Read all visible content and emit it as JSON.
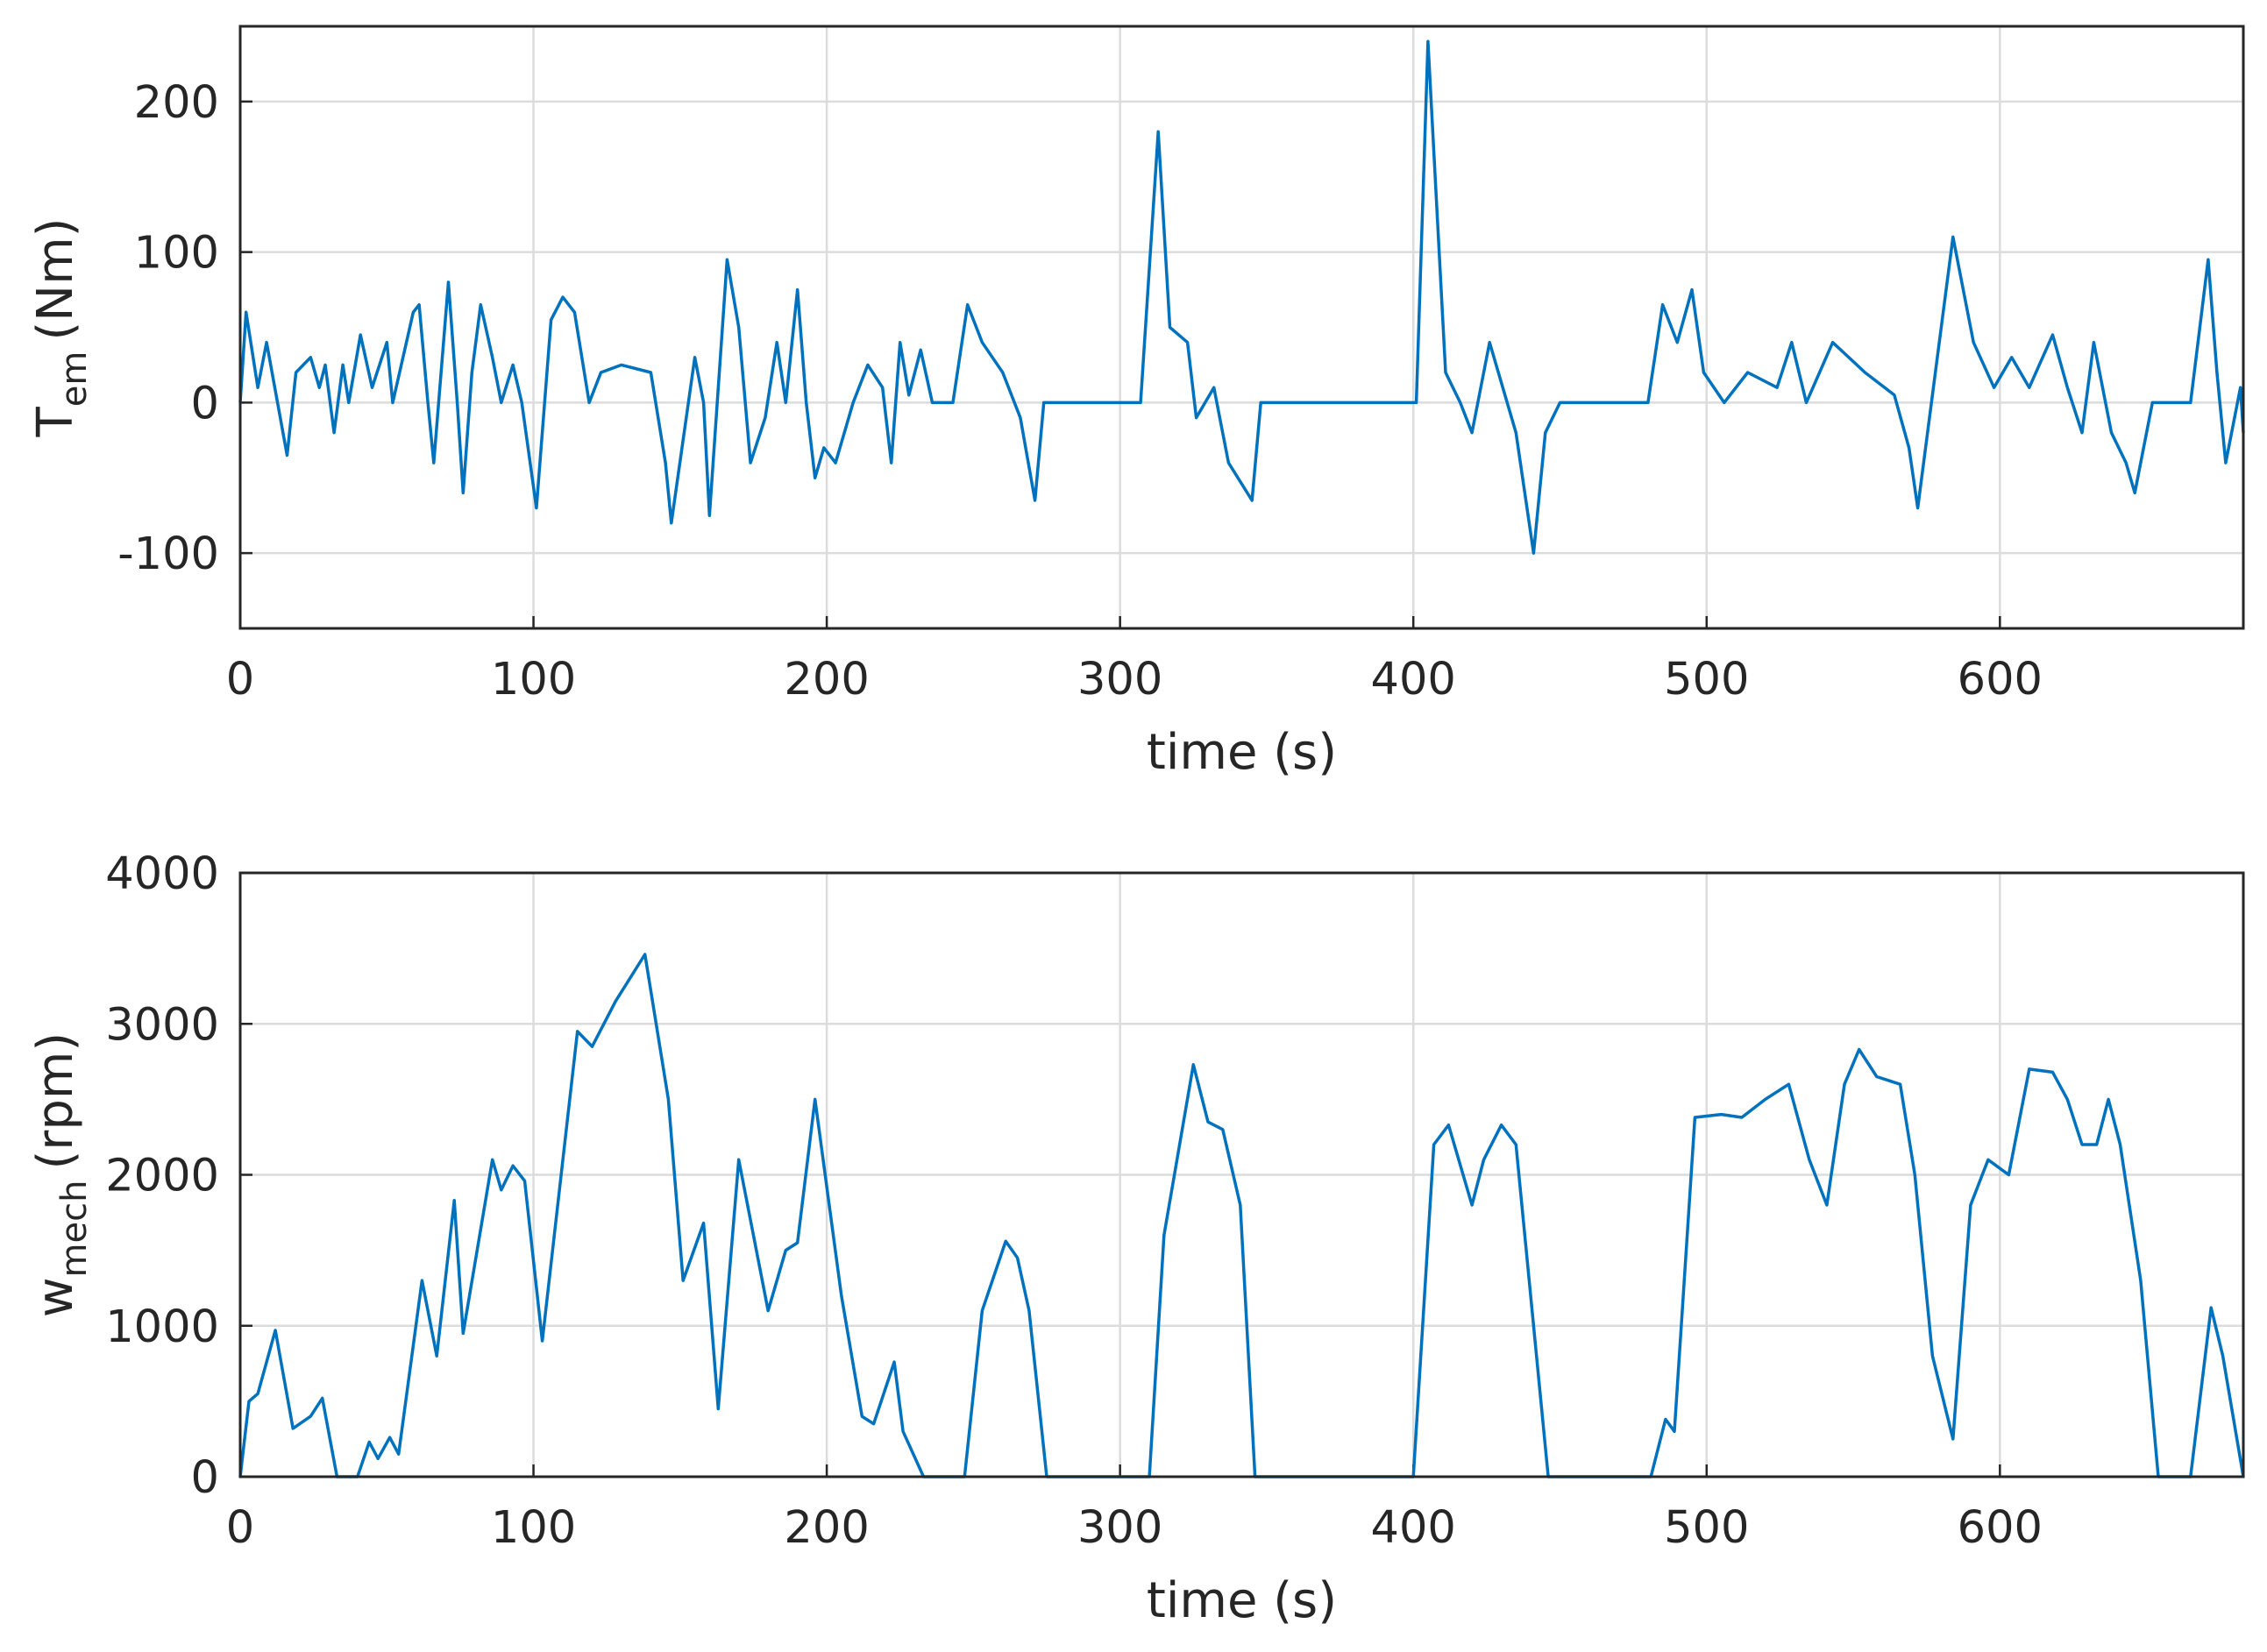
{
  "chart_data": [
    {
      "type": "line",
      "ylabel": [
        "T",
        "em",
        "(Nm)"
      ],
      "xlabel": "time (s)",
      "xlim": [
        0,
        683
      ],
      "xticks": [
        0,
        100,
        200,
        300,
        400,
        500,
        600
      ],
      "ylim": [
        -150,
        250
      ],
      "yticks": [
        -100,
        0,
        100,
        200
      ],
      "grid": true,
      "x": [
        0,
        2,
        6,
        9,
        16,
        19,
        24,
        27,
        29,
        32,
        35,
        37,
        41,
        45,
        50,
        52,
        59,
        61,
        64,
        66,
        71,
        74,
        76,
        79,
        82,
        86,
        89,
        93,
        96,
        101,
        106,
        110,
        114,
        119,
        123,
        130,
        140,
        145,
        147,
        155,
        158,
        160,
        166,
        170,
        174,
        179,
        183,
        186,
        190,
        193,
        196,
        199,
        203,
        209,
        214,
        219,
        222,
        225,
        228,
        232,
        236,
        243,
        248,
        253,
        260,
        266,
        271,
        274,
        307,
        313,
        317,
        323,
        326,
        332,
        337,
        345,
        348,
        401,
        405,
        411,
        416,
        420,
        426,
        435,
        441,
        445,
        450,
        480,
        485,
        490,
        495,
        499,
        506,
        514,
        524,
        529,
        534,
        543,
        554,
        564,
        569,
        572,
        578,
        584,
        591,
        598,
        604,
        610,
        618,
        623,
        628,
        632,
        638,
        643,
        646,
        652,
        665,
        671,
        674,
        677,
        682,
        683
      ],
      "series": [
        {
          "color": "#0072bd",
          "values": [
            0,
            60,
            10,
            40,
            -35,
            20,
            30,
            10,
            25,
            -20,
            25,
            0,
            45,
            10,
            40,
            0,
            60,
            65,
            0,
            -40,
            80,
            0,
            -60,
            20,
            65,
            30,
            0,
            25,
            0,
            -70,
            55,
            70,
            60,
            0,
            20,
            25,
            20,
            -40,
            -80,
            30,
            0,
            -75,
            95,
            50,
            -40,
            -10,
            40,
            0,
            75,
            0,
            -50,
            -30,
            -40,
            0,
            25,
            10,
            -40,
            40,
            5,
            35,
            0,
            0,
            65,
            40,
            20,
            -10,
            -65,
            0,
            0,
            180,
            50,
            40,
            -10,
            10,
            -40,
            -65,
            0,
            0,
            240,
            20,
            0,
            -20,
            40,
            -20,
            -100,
            -20,
            0,
            0,
            65,
            40,
            75,
            20,
            0,
            20,
            10,
            40,
            0,
            40,
            20,
            5,
            -30,
            -70,
            20,
            110,
            40,
            10,
            30,
            10,
            45,
            10,
            -20,
            40,
            -20,
            -40,
            -60,
            0,
            0,
            95,
            20,
            -40,
            10,
            -20
          ]
        }
      ]
    },
    {
      "type": "line",
      "ylabel": [
        "w",
        "mech",
        "(rpm)"
      ],
      "xlabel": "time (s)",
      "xlim": [
        0,
        683
      ],
      "xticks": [
        0,
        100,
        200,
        300,
        400,
        500,
        600
      ],
      "ylim": [
        0,
        4000
      ],
      "yticks": [
        0,
        1000,
        2000,
        3000,
        4000
      ],
      "grid": true,
      "x": [
        0,
        3,
        6,
        12,
        18,
        24,
        28,
        33,
        40,
        44,
        47,
        51,
        54,
        62,
        67,
        73,
        76,
        86,
        89,
        93,
        97,
        103,
        115,
        120,
        128,
        138,
        146,
        151,
        158,
        163,
        170,
        180,
        186,
        190,
        196,
        205,
        212,
        216,
        223,
        226,
        233,
        247,
        253,
        261,
        265,
        269,
        275,
        310,
        315,
        325,
        330,
        335,
        341,
        346,
        400,
        407,
        412,
        420,
        424,
        430,
        435,
        446,
        481,
        486,
        489,
        496,
        505,
        512,
        520,
        528,
        535,
        541,
        547,
        552,
        558,
        566,
        571,
        577,
        584,
        590,
        596,
        603,
        610,
        618,
        623,
        628,
        633,
        637,
        641,
        648,
        654,
        665,
        672,
        676,
        683
      ],
      "series": [
        {
          "color": "#0072bd",
          "values": [
            0,
            500,
            550,
            970,
            320,
            400,
            520,
            0,
            0,
            230,
            120,
            260,
            150,
            1300,
            800,
            1830,
            950,
            2100,
            1900,
            2060,
            1960,
            900,
            2950,
            2850,
            3150,
            3460,
            2500,
            1300,
            1680,
            450,
            2100,
            1100,
            1500,
            1550,
            2500,
            1200,
            400,
            350,
            760,
            300,
            0,
            0,
            1100,
            1560,
            1450,
            1100,
            0,
            0,
            1600,
            2730,
            2350,
            2300,
            1800,
            0,
            0,
            2200,
            2330,
            1800,
            2100,
            2330,
            2200,
            0,
            0,
            380,
            300,
            2380,
            2400,
            2380,
            2500,
            2600,
            2100,
            1800,
            2600,
            2830,
            2650,
            2600,
            2000,
            800,
            250,
            1800,
            2100,
            2000,
            2700,
            2680,
            2500,
            2200,
            2200,
            2500,
            2200,
            1300,
            0,
            0,
            1120,
            800,
            0
          ]
        }
      ]
    }
  ]
}
